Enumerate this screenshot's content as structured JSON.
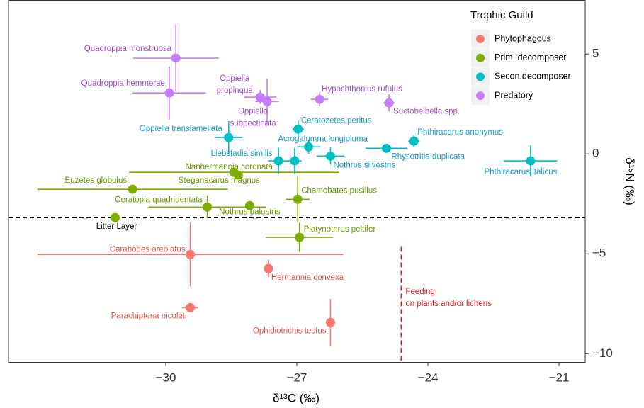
{
  "chart_data": {
    "type": "scatter",
    "x_label": "δ¹³C (‰)",
    "y_label": "δ¹⁵N (‰)",
    "legend_title": "Trophic Guild",
    "legend_position": "top-right",
    "xlim": [
      -33.6,
      -20.4
    ],
    "ylim": [
      -10.45,
      7.7
    ],
    "xticks": [
      {
        "value": -30,
        "label": "−30"
      },
      {
        "value": -27,
        "label": "−27"
      },
      {
        "value": -24,
        "label": "−24"
      },
      {
        "value": -21,
        "label": "−21"
      }
    ],
    "yticks": [
      5,
      0,
      {
        "value": -5,
        "label": "−5"
      },
      {
        "value": -10,
        "label": "−10"
      }
    ],
    "series": [
      {
        "name": "Phytophagous",
        "color": "#F8766D",
        "label_color": "#E8544B",
        "labels": [
          "Carabodes areolatus",
          "Hermannia convexa",
          "Parachipteria nicoleti",
          "Ophidiotrichis tectus"
        ],
        "x": [
          -29.44,
          -27.65,
          -29.44,
          -26.23
        ],
        "values": [
          -5.04,
          -5.74,
          -7.7,
          -8.44
        ],
        "xerr": [
          3.5,
          null,
          0.19,
          null
        ],
        "yerr": [
          1.6,
          0.43,
          null,
          1.17
        ]
      },
      {
        "name": "Prim. decomposer",
        "color": "#7CAE00",
        "label_color": "#6A9A00",
        "labels": [
          "Nanhermannia coronata",
          "Steganacarus magnus",
          "Euzetes globulus",
          "Ceratopia quadridentata",
          "Nothrus palustris",
          "Chamobates pusillus",
          "Platynothrus peltifer"
        ],
        "x": [
          -28.44,
          -28.34,
          -30.76,
          -29.05,
          -28.08,
          -26.98,
          -26.94
        ],
        "values": [
          -0.92,
          -1.06,
          -1.77,
          -2.66,
          -2.59,
          -2.27,
          -4.18
        ],
        "xerr": [
          2.4,
          null,
          2.18,
          1.35,
          null,
          0.27,
          0.77
        ],
        "yerr": [
          null,
          null,
          null,
          0.57,
          null,
          1.17,
          0.73
        ]
      },
      {
        "name": "Secon.decomposer",
        "color": "#00BFC4",
        "label_color": "#1A9EC9",
        "labels": [
          "Oppiella translamellata",
          "Ceratozetes peritus",
          "Acrogalumna longipluma",
          "Phthiracarus anonymus",
          "Rhysotritia duplicata",
          "Liebstadia similis",
          null,
          "Nothrus silvestris",
          "Phthiracarus italicus"
        ],
        "x": [
          -28.56,
          -26.97,
          -26.73,
          -24.32,
          -24.95,
          -27.42,
          -27.05,
          -26.23,
          -21.65
        ],
        "values": [
          0.82,
          1.24,
          0.35,
          0.64,
          0.28,
          -0.35,
          -0.35,
          -0.11,
          -0.35
        ],
        "xerr": [
          0.31,
          0.13,
          0.27,
          0.13,
          0.48,
          0.24,
          0.16,
          0.32,
          0.61
        ],
        "yerr": [
          0.82,
          0.43,
          0.35,
          0.3,
          0.18,
          0.65,
          0.65,
          0.43,
          0.78
        ]
      },
      {
        "name": "Predatory",
        "color": "#C77CFF",
        "label_color": "#A64DC4",
        "labels": [
          "Quadroppia monstruosa",
          "Quadroppia hemmerae",
          "Oppiella propinqua",
          "Oppiella subpectinata",
          "Hypochthonius rufulus",
          "Suctobelbella spp."
        ],
        "x": [
          -29.77,
          -29.92,
          -27.84,
          -27.68,
          -26.48,
          -24.89
        ],
        "values": [
          4.79,
          3.05,
          2.84,
          2.62,
          2.73,
          2.55
        ],
        "xerr": [
          0.98,
          0.84,
          0.37,
          0.27,
          0.2,
          0.13
        ],
        "yerr": [
          1.68,
          1.33,
          0.35,
          1.15,
          0.35,
          0.43
        ]
      }
    ],
    "reference": {
      "label": "Litter Layer",
      "x": -31.16,
      "value": -3.19,
      "color": "#7CAE00"
    },
    "annotation": {
      "text": "Feeding on plants and/or lichens",
      "x": -24.61,
      "ymax": -4.65,
      "color": "#E41A1C"
    }
  }
}
